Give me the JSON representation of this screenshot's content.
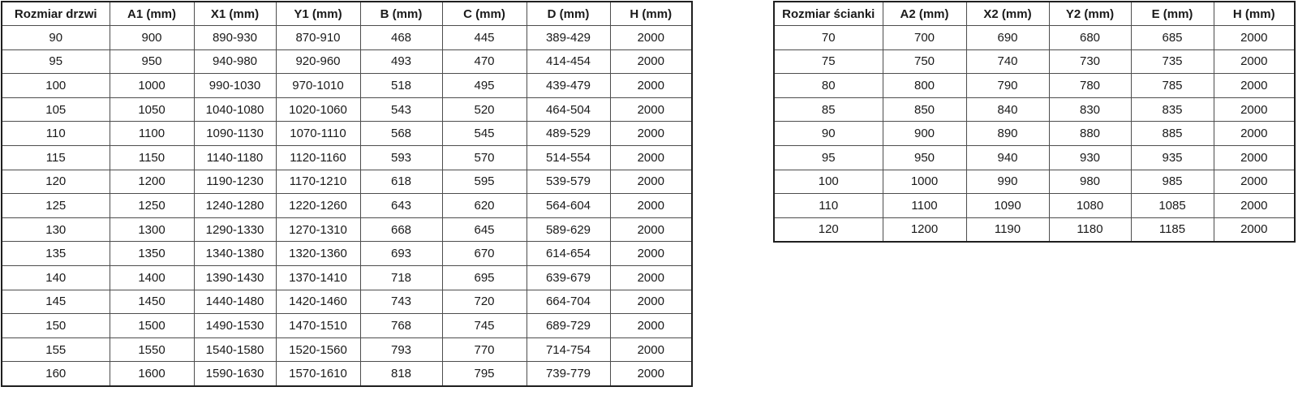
{
  "document": {
    "language": "pl",
    "description_visible_content_only": "Two size specification tables"
  },
  "colors": {
    "background": "#ffffff",
    "text": "#1a1a1a",
    "border_outer": "#1f1f1f",
    "border_inner": "#4d4d4d"
  },
  "tables": {
    "door": {
      "headers": [
        "Rozmiar drzwi",
        "A1 (mm)",
        "X1 (mm)",
        "Y1 (mm)",
        "B (mm)",
        "C (mm)",
        "D (mm)",
        "H (mm)"
      ],
      "rows": [
        [
          "90",
          "900",
          "890-930",
          "870-910",
          "468",
          "445",
          "389-429",
          "2000"
        ],
        [
          "95",
          "950",
          "940-980",
          "920-960",
          "493",
          "470",
          "414-454",
          "2000"
        ],
        [
          "100",
          "1000",
          "990-1030",
          "970-1010",
          "518",
          "495",
          "439-479",
          "2000"
        ],
        [
          "105",
          "1050",
          "1040-1080",
          "1020-1060",
          "543",
          "520",
          "464-504",
          "2000"
        ],
        [
          "110",
          "1100",
          "1090-1130",
          "1070-1110",
          "568",
          "545",
          "489-529",
          "2000"
        ],
        [
          "115",
          "1150",
          "1140-1180",
          "1120-1160",
          "593",
          "570",
          "514-554",
          "2000"
        ],
        [
          "120",
          "1200",
          "1190-1230",
          "1170-1210",
          "618",
          "595",
          "539-579",
          "2000"
        ],
        [
          "125",
          "1250",
          "1240-1280",
          "1220-1260",
          "643",
          "620",
          "564-604",
          "2000"
        ],
        [
          "130",
          "1300",
          "1290-1330",
          "1270-1310",
          "668",
          "645",
          "589-629",
          "2000"
        ],
        [
          "135",
          "1350",
          "1340-1380",
          "1320-1360",
          "693",
          "670",
          "614-654",
          "2000"
        ],
        [
          "140",
          "1400",
          "1390-1430",
          "1370-1410",
          "718",
          "695",
          "639-679",
          "2000"
        ],
        [
          "145",
          "1450",
          "1440-1480",
          "1420-1460",
          "743",
          "720",
          "664-704",
          "2000"
        ],
        [
          "150",
          "1500",
          "1490-1530",
          "1470-1510",
          "768",
          "745",
          "689-729",
          "2000"
        ],
        [
          "155",
          "1550",
          "1540-1580",
          "1520-1560",
          "793",
          "770",
          "714-754",
          "2000"
        ],
        [
          "160",
          "1600",
          "1590-1630",
          "1570-1610",
          "818",
          "795",
          "739-779",
          "2000"
        ]
      ]
    },
    "wall": {
      "headers": [
        "Rozmiar ścianki",
        "A2 (mm)",
        "X2 (mm)",
        "Y2 (mm)",
        "E (mm)",
        "H (mm)"
      ],
      "rows": [
        [
          "70",
          "700",
          "690",
          "680",
          "685",
          "2000"
        ],
        [
          "75",
          "750",
          "740",
          "730",
          "735",
          "2000"
        ],
        [
          "80",
          "800",
          "790",
          "780",
          "785",
          "2000"
        ],
        [
          "85",
          "850",
          "840",
          "830",
          "835",
          "2000"
        ],
        [
          "90",
          "900",
          "890",
          "880",
          "885",
          "2000"
        ],
        [
          "95",
          "950",
          "940",
          "930",
          "935",
          "2000"
        ],
        [
          "100",
          "1000",
          "990",
          "980",
          "985",
          "2000"
        ],
        [
          "110",
          "1100",
          "1090",
          "1080",
          "1085",
          "2000"
        ],
        [
          "120",
          "1200",
          "1190",
          "1180",
          "1185",
          "2000"
        ]
      ]
    }
  }
}
